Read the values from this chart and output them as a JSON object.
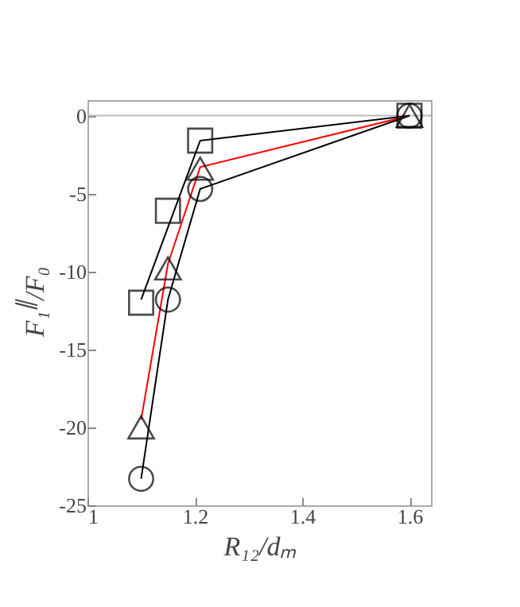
{
  "chart_data": {
    "type": "scatter",
    "xlabel": "R₁₂/dₘ",
    "ylabel": "F₁$^{∥}$/F₀",
    "xlim": [
      1,
      1.64
    ],
    "ylim": [
      -25,
      1
    ],
    "xticks": [
      {
        "value": 1,
        "label": "1"
      },
      1.2,
      1.4,
      1.6
    ],
    "yticks": [
      -25,
      -20,
      -15,
      -10,
      -5,
      0
    ],
    "grid": false,
    "ref_lines": [
      {
        "axis": "y",
        "value": 0,
        "color": "#bbbbbb"
      }
    ],
    "series": [
      {
        "type": "line",
        "marker": "none",
        "color": "#000000",
        "x": [
          1.1,
          1.21,
          1.6
        ],
        "values": [
          -11.8,
          -1.6,
          0
        ]
      },
      {
        "type": "line",
        "marker": "none",
        "color": "#ff0000",
        "x": [
          1.1,
          1.15,
          1.21,
          1.6
        ],
        "values": [
          -19.5,
          -9.5,
          -3.3,
          0
        ]
      },
      {
        "type": "line",
        "marker": "none",
        "color": "#000000",
        "x": [
          1.1,
          1.15,
          1.21,
          1.6
        ],
        "values": [
          -23.3,
          -11.8,
          -4.7,
          0
        ]
      },
      {
        "marker": "square",
        "color": "#000000",
        "x": [
          1.1,
          1.15,
          1.21,
          1.6
        ],
        "values": [
          -12,
          -6.1,
          -1.6,
          0
        ]
      },
      {
        "marker": "triangle",
        "color": "#000000",
        "x": [
          1.1,
          1.15,
          1.21,
          1.6
        ],
        "values": [
          -20,
          -9.8,
          -3.4,
          0
        ]
      },
      {
        "marker": "circle",
        "color": "#000000",
        "x": [
          1.1,
          1.15,
          1.21,
          1.6
        ],
        "values": [
          -23.3,
          -11.8,
          -4.7,
          0
        ]
      }
    ]
  }
}
